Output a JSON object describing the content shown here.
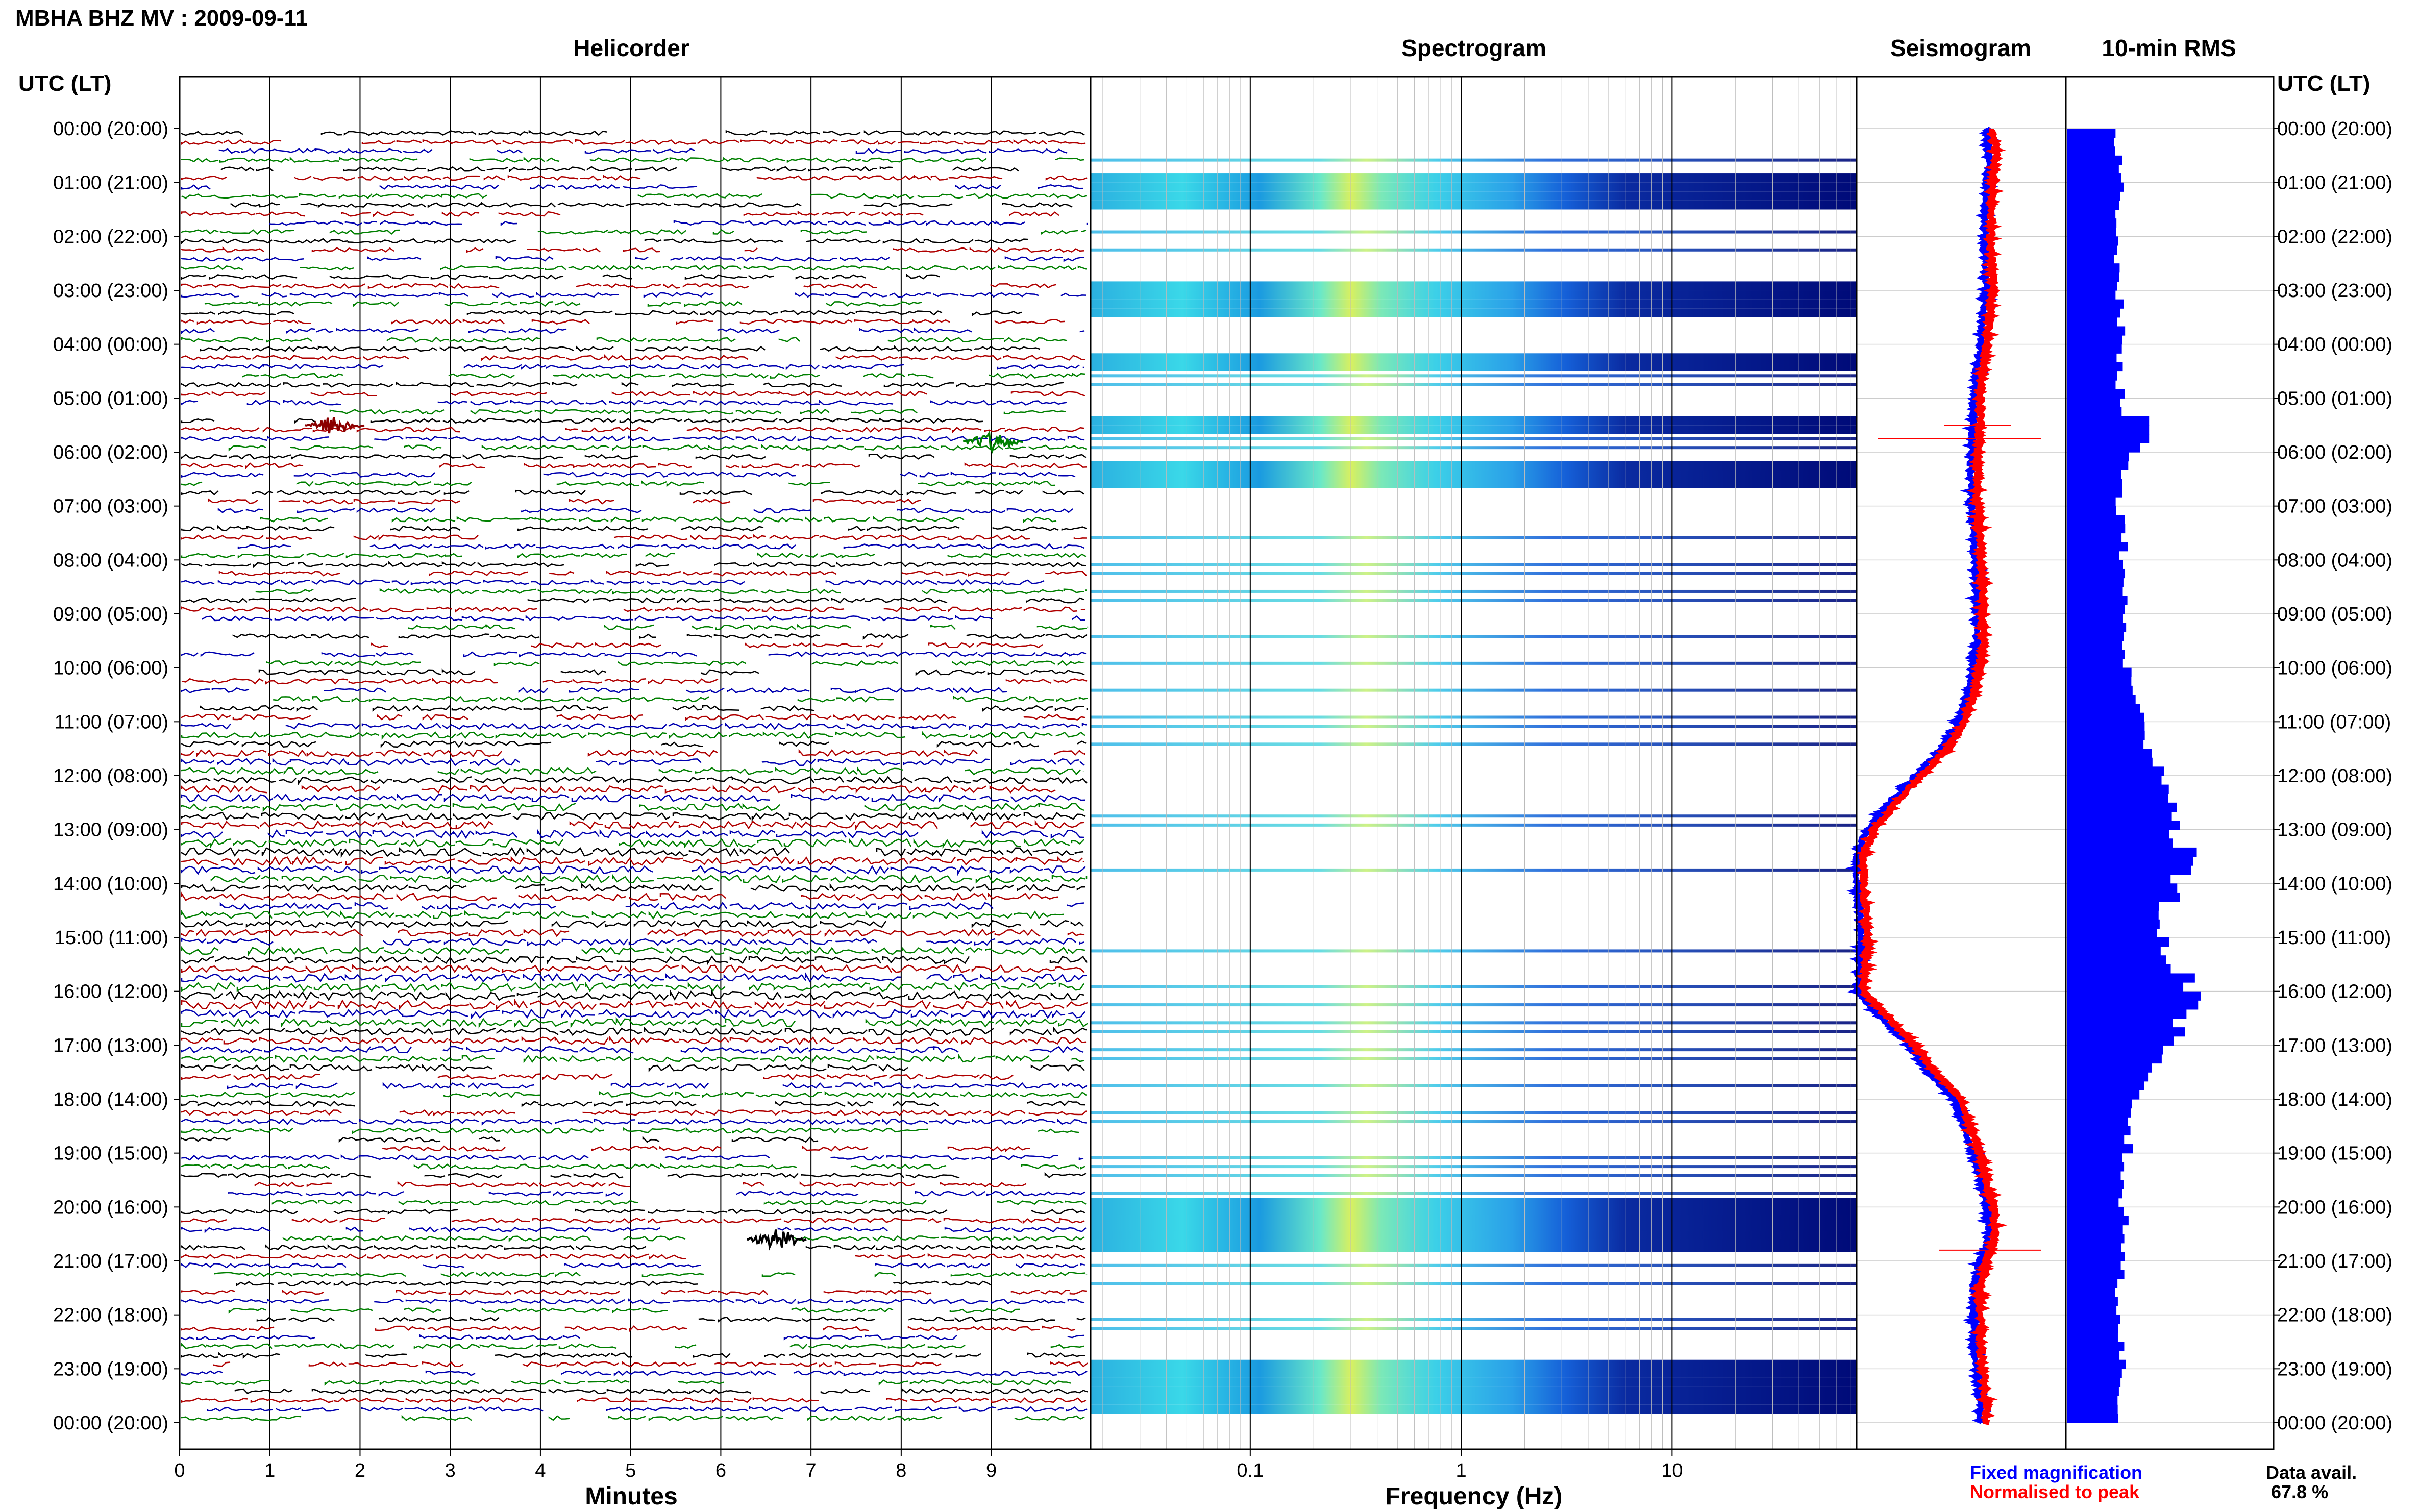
{
  "title": "MBHA BHZ MV : 2009-09-11",
  "panels": {
    "helicorder": "Helicorder",
    "spectrogram": "Spectrogram",
    "seismogram": "Seismogram",
    "rms": "10-min RMS"
  },
  "time_axis_label": "UTC (LT)",
  "time_labels": [
    "00:00 (20:00)",
    "01:00 (21:00)",
    "02:00 (22:00)",
    "03:00 (23:00)",
    "04:00 (00:00)",
    "05:00 (01:00)",
    "06:00 (02:00)",
    "07:00 (03:00)",
    "08:00 (04:00)",
    "09:00 (05:00)",
    "10:00 (06:00)",
    "11:00 (07:00)",
    "12:00 (08:00)",
    "13:00 (09:00)",
    "14:00 (10:00)",
    "15:00 (11:00)",
    "16:00 (12:00)",
    "17:00 (13:00)",
    "18:00 (14:00)",
    "19:00 (15:00)",
    "20:00 (16:00)",
    "21:00 (17:00)",
    "22:00 (18:00)",
    "23:00 (19:00)",
    "00:00 (20:00)"
  ],
  "helicorder_xlabel": "Minutes",
  "helicorder_xticks": [
    "0",
    "1",
    "2",
    "3",
    "4",
    "5",
    "6",
    "7",
    "8",
    "9"
  ],
  "spectrogram_xlabel": "Frequency (Hz)",
  "spectrogram_xticks": [
    "0.1",
    "1",
    "10"
  ],
  "legend": {
    "fixed": "Fixed magnification",
    "normalised": "Normalised to peak",
    "fixed_color": "#0000ff",
    "normalised_color": "#ff0000"
  },
  "data_avail": {
    "label": "Data avail.",
    "value": "67.8 %"
  },
  "chart_data": {
    "type": "area",
    "hours_utc": [
      0,
      0.5,
      1,
      1.5,
      2,
      2.5,
      3,
      3.5,
      4,
      4.5,
      5,
      5.5,
      6,
      6.5,
      7,
      7.5,
      8,
      8.5,
      9,
      9.5,
      10,
      10.5,
      11,
      11.5,
      12,
      12.5,
      13,
      13.5,
      14,
      14.5,
      15,
      15.5,
      16,
      16.5,
      17,
      17.5,
      18,
      18.5,
      19,
      19.5,
      20,
      20.5,
      21,
      21.5,
      22,
      22.5,
      23,
      23.5,
      24
    ],
    "rms_relative": [
      0.4,
      0.38,
      0.4,
      0.37,
      0.36,
      0.38,
      0.4,
      0.38,
      0.42,
      0.4,
      0.4,
      0.42,
      0.45,
      0.42,
      0.4,
      0.42,
      0.42,
      0.44,
      0.42,
      0.44,
      0.45,
      0.5,
      0.55,
      0.65,
      0.75,
      0.8,
      0.82,
      0.95,
      0.8,
      0.75,
      0.7,
      0.78,
      1.0,
      0.9,
      0.72,
      0.6,
      0.5,
      0.48,
      0.45,
      0.42,
      0.42,
      0.44,
      0.42,
      0.4,
      0.4,
      0.42,
      0.4,
      0.4,
      0.4
    ],
    "seismogram_drift_relative": [
      0,
      -0.02,
      0,
      0.01,
      0.02,
      0.01,
      0,
      0.03,
      0.05,
      0.08,
      0.1,
      0.1,
      0.12,
      0.12,
      0.12,
      0.1,
      0.09,
      0.08,
      0.08,
      0.08,
      0.1,
      0.15,
      0.22,
      0.35,
      0.55,
      0.75,
      0.92,
      1.0,
      1.0,
      0.98,
      0.96,
      0.98,
      1.0,
      0.8,
      0.6,
      0.45,
      0.25,
      0.18,
      0.1,
      0.05,
      0.0,
      -0.02,
      0.05,
      0.1,
      0.1,
      0.1,
      0.08,
      0.06,
      0.05
    ],
    "spectrogram_strong_hours": [
      0.9,
      1.5,
      2.9,
      3.5,
      4.1,
      4.5,
      5.3,
      5.6,
      6.2,
      6.6,
      19.9,
      20.9,
      22.9,
      23.9
    ],
    "helicorder_events": [
      {
        "hour": 5.5,
        "minute": 1.5,
        "trace_color": "#8b0000"
      },
      {
        "hour": 5.8,
        "minute": 8.8,
        "trace_color": "#008000"
      },
      {
        "hour": 20.6,
        "minute": 6.4,
        "trace_color": "#000000"
      }
    ]
  }
}
